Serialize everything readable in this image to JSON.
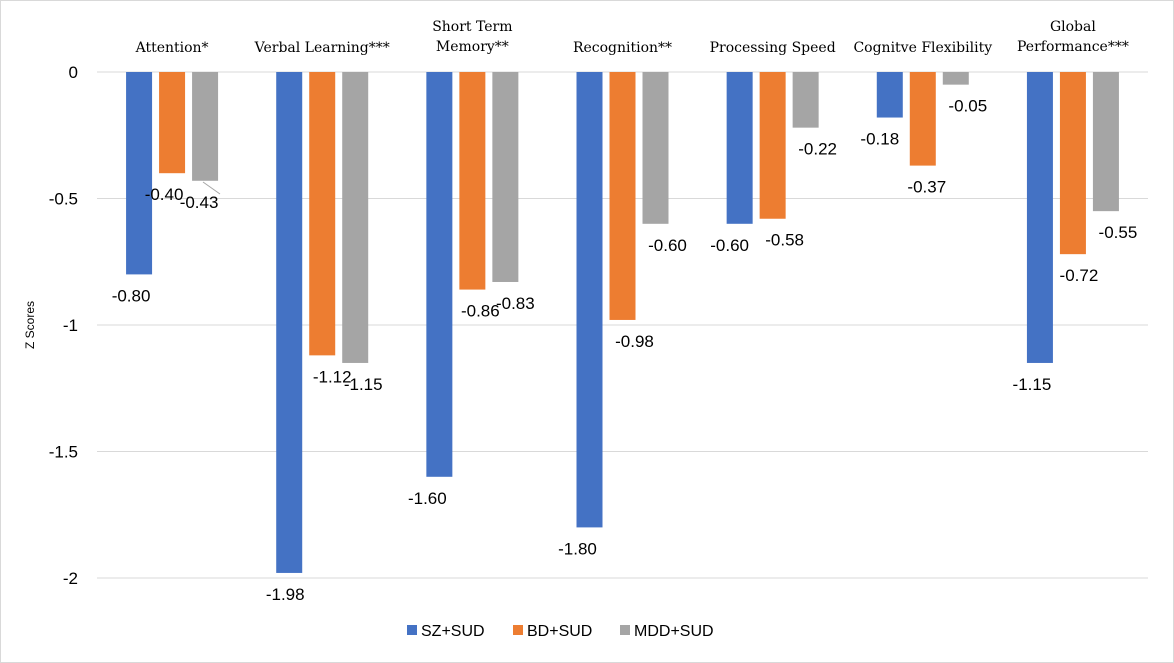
{
  "chart_data": {
    "type": "bar",
    "categories": [
      [
        "Attention*"
      ],
      [
        "Verbal Learning***"
      ],
      [
        "Short Term",
        "Memory**"
      ],
      [
        "Recognition**"
      ],
      [
        "Processing Speed"
      ],
      [
        "Cognitve Flexibility"
      ],
      [
        "Global",
        "Performance***"
      ]
    ],
    "series": [
      {
        "name": "SZ+SUD",
        "color": "#4472C4",
        "values": [
          -0.8,
          -1.98,
          -1.6,
          -1.8,
          -0.6,
          -0.18,
          -1.15
        ]
      },
      {
        "name": "BD+SUD",
        "color": "#ED7D31",
        "values": [
          -0.4,
          -1.12,
          -0.86,
          -0.98,
          -0.58,
          -0.37,
          -0.72
        ]
      },
      {
        "name": "MDD+SUD",
        "color": "#A5A5A5",
        "values": [
          -0.43,
          -1.15,
          -0.83,
          -0.6,
          -0.22,
          -0.05,
          -0.55
        ]
      }
    ],
    "data_labels": [
      [
        "-0.80",
        "-1.98",
        "-1.60",
        "-1.80",
        "-0.60",
        "-0.18",
        "-1.15"
      ],
      [
        "-0.40",
        "-1.12",
        "-0.86",
        "-0.98",
        "-0.58",
        "-0.37",
        "-0.72"
      ],
      [
        "-0.43",
        "-1.15",
        "-0.83",
        "-0.60",
        "-0.22",
        "-0.05",
        "-0.55"
      ]
    ],
    "ylabel": "Z Scores",
    "xlabel": "",
    "ylim": [
      -2,
      0
    ],
    "yticks": [
      0,
      -0.5,
      -1,
      -1.5,
      -2
    ],
    "ytick_labels": [
      "0",
      "-0.5",
      "-1",
      "-1.5",
      "-2"
    ],
    "grid": true,
    "legend_position": "bottom",
    "category_axis_position": "top"
  }
}
